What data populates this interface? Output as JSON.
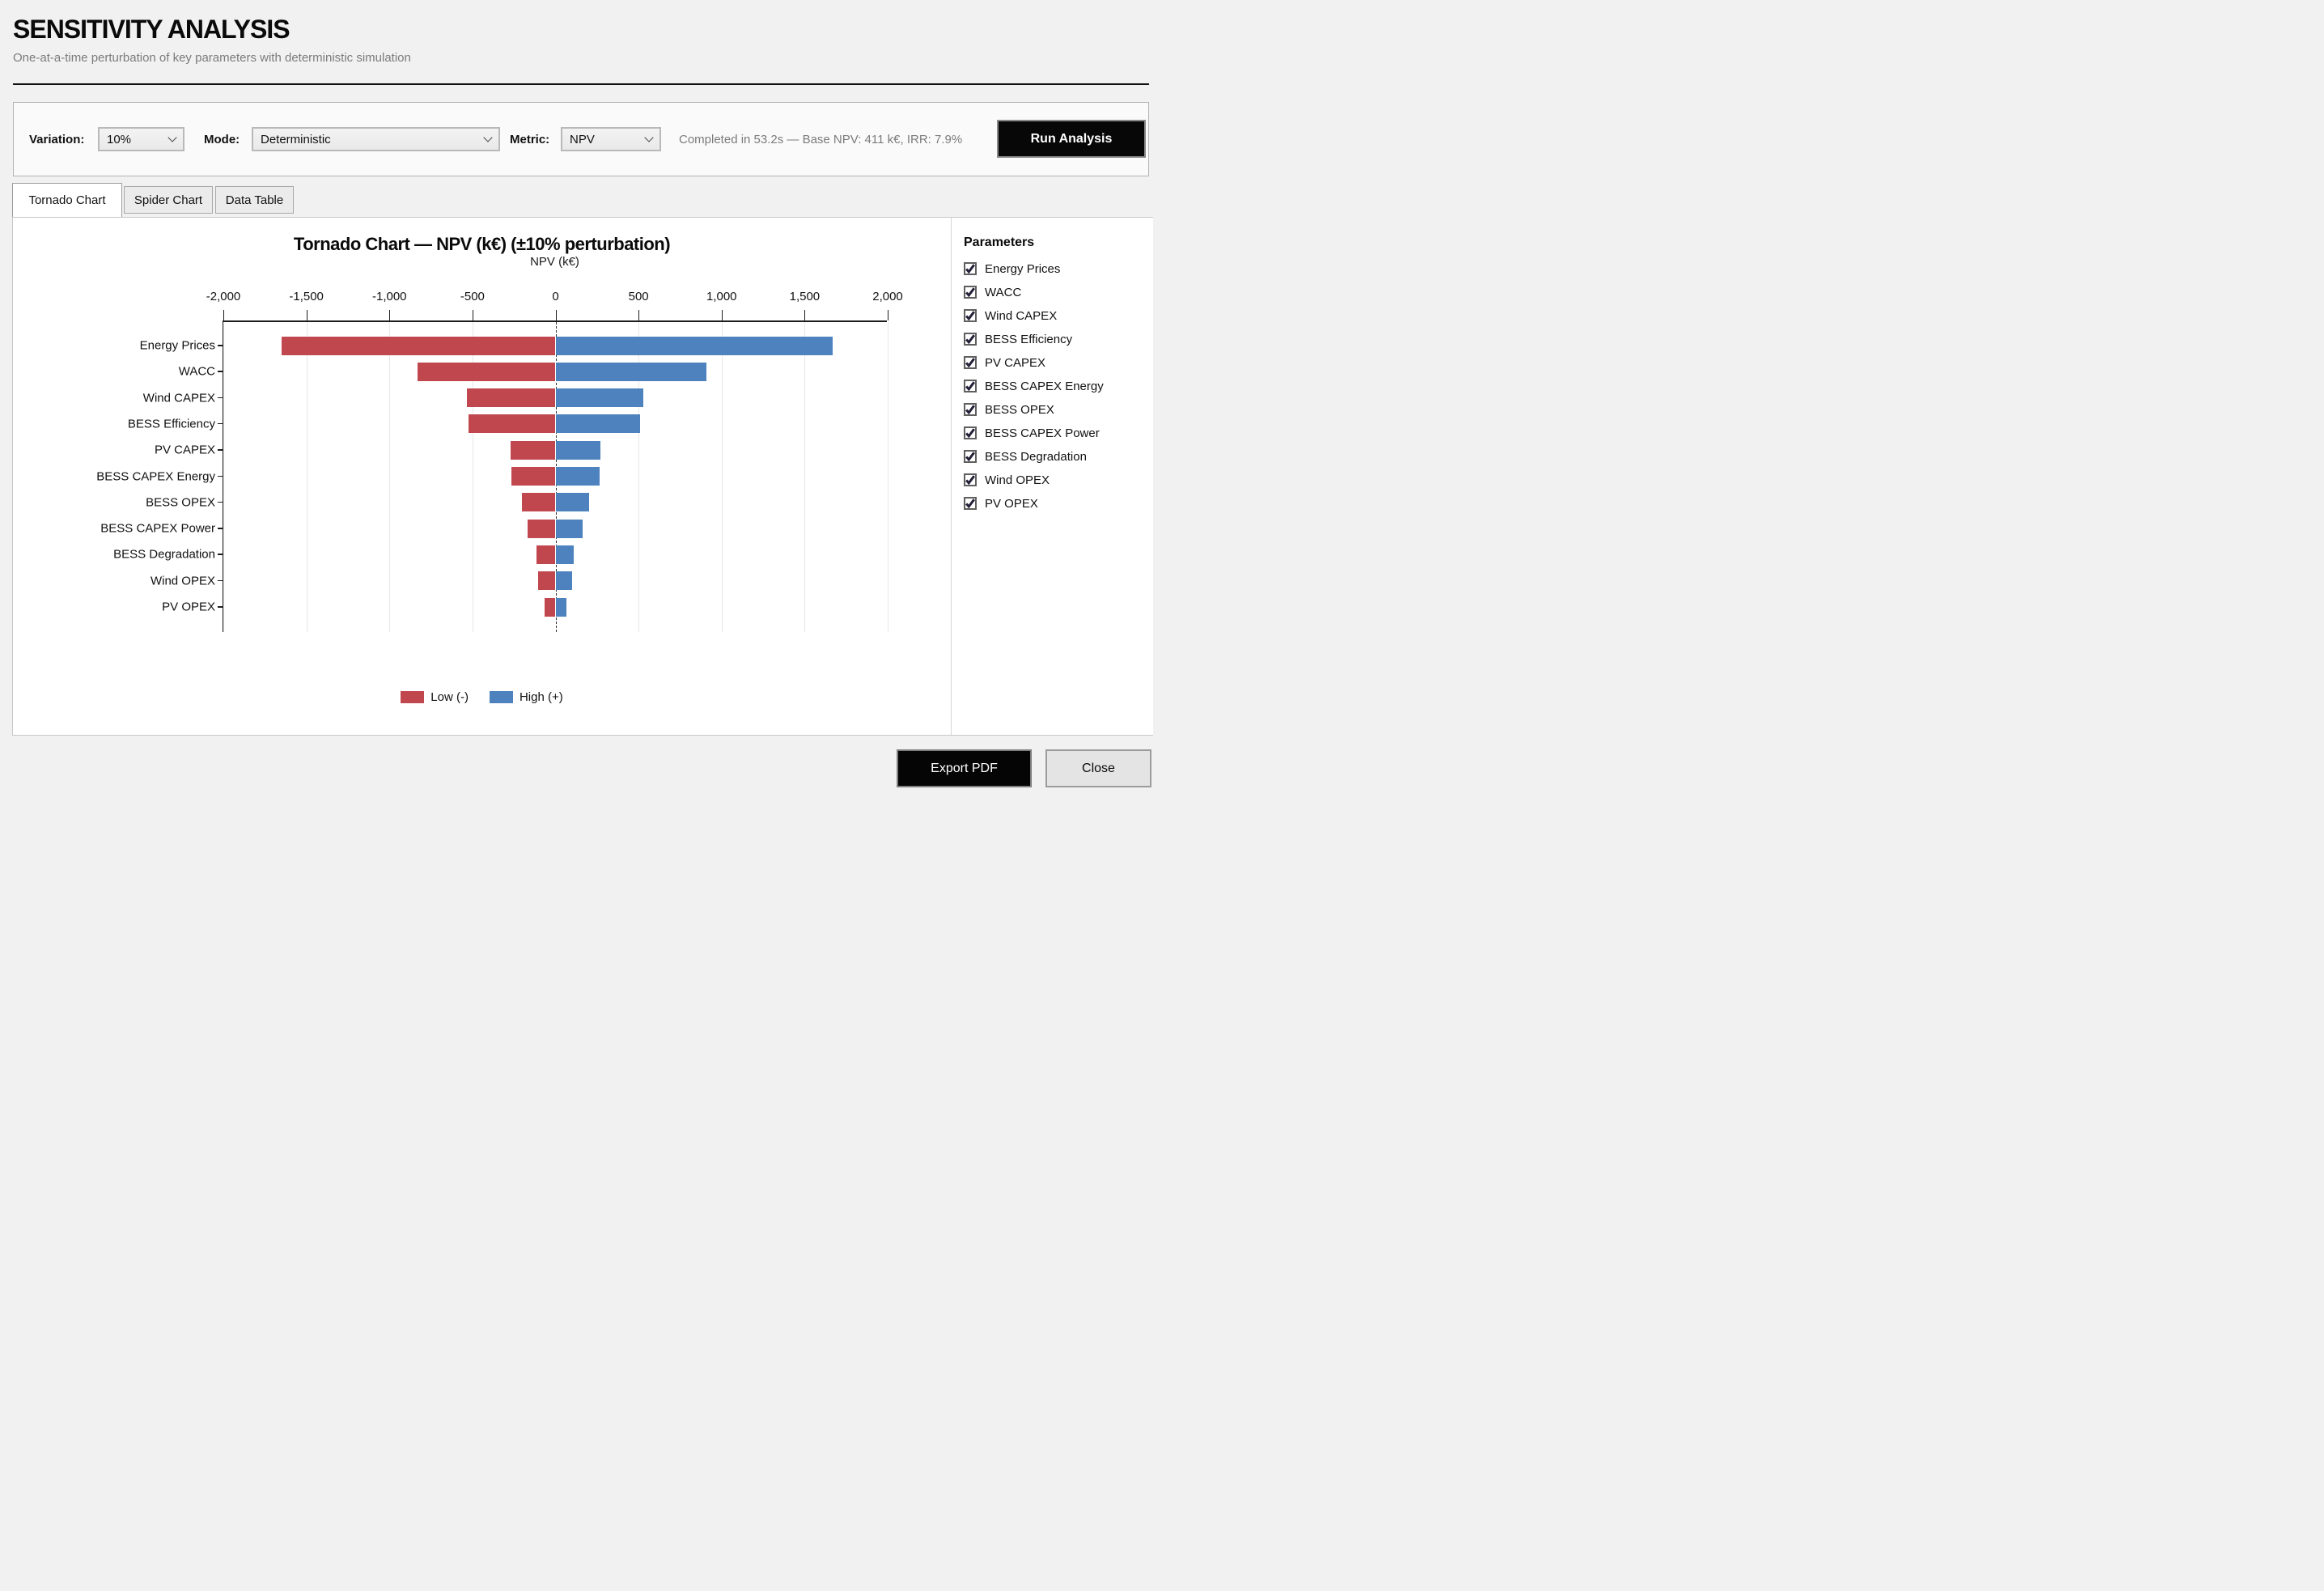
{
  "header": {
    "title": "SENSITIVITY ANALYSIS",
    "subtitle": "One-at-a-time perturbation of key parameters with deterministic simulation"
  },
  "toolbar": {
    "variation_label": "Variation:",
    "variation_value": "10%",
    "mode_label": "Mode:",
    "mode_value": "Deterministic",
    "metric_label": "Metric:",
    "metric_value": "NPV",
    "status": "Completed in 53.2s — Base NPV: 411 k€, IRR: 7.9%",
    "run_button": "Run Analysis"
  },
  "tabs": [
    {
      "label": "Tornado Chart",
      "active": true
    },
    {
      "label": "Spider Chart",
      "active": false
    },
    {
      "label": "Data Table",
      "active": false
    }
  ],
  "chart_data": {
    "type": "bar",
    "orientation": "horizontal-tornado",
    "title": "Tornado Chart — NPV (k€) (±10% perturbation)",
    "xlabel": "NPV (k€)",
    "xlim": [
      -2000,
      2000
    ],
    "tick_values": [
      -2000,
      -1500,
      -1000,
      -500,
      0,
      500,
      1000,
      1500,
      2000
    ],
    "tick_labels": [
      "-2,000",
      "-1,500",
      "-1,000",
      "-500",
      "0",
      "500",
      "1,000",
      "1,500",
      "2,000"
    ],
    "categories": [
      "Energy Prices",
      "WACC",
      "Wind CAPEX",
      "BESS Efficiency",
      "PV CAPEX",
      "BESS CAPEX Energy",
      "BESS OPEX",
      "BESS CAPEX Power",
      "BESS Degradation",
      "Wind OPEX",
      "PV OPEX"
    ],
    "series": [
      {
        "name": "Low (-)",
        "color": "#C1474F",
        "values": [
          -1650,
          -830,
          -535,
          -525,
          -270,
          -265,
          -200,
          -170,
          -115,
          -105,
          -65
        ]
      },
      {
        "name": "High (+)",
        "color": "#4D82BE",
        "values": [
          1670,
          910,
          530,
          510,
          270,
          265,
          200,
          165,
          110,
          100,
          65
        ]
      }
    ],
    "zero_line": true,
    "grid": true,
    "legend_position": "bottom",
    "legend": [
      {
        "label": "Low (-)",
        "color": "#C1474F"
      },
      {
        "label": "High (+)",
        "color": "#4D82BE"
      }
    ]
  },
  "sidebar": {
    "heading": "Parameters",
    "items": [
      {
        "label": "Energy Prices",
        "checked": true
      },
      {
        "label": "WACC",
        "checked": true
      },
      {
        "label": "Wind CAPEX",
        "checked": true
      },
      {
        "label": "BESS Efficiency",
        "checked": true
      },
      {
        "label": "PV CAPEX",
        "checked": true
      },
      {
        "label": "BESS CAPEX Energy",
        "checked": true
      },
      {
        "label": "BESS OPEX",
        "checked": true
      },
      {
        "label": "BESS CAPEX Power",
        "checked": true
      },
      {
        "label": "BESS Degradation",
        "checked": true
      },
      {
        "label": "Wind OPEX",
        "checked": true
      },
      {
        "label": "PV OPEX",
        "checked": true
      }
    ],
    "check_color": "#232038"
  },
  "footer": {
    "export_button": "Export PDF",
    "close_button": "Close"
  }
}
